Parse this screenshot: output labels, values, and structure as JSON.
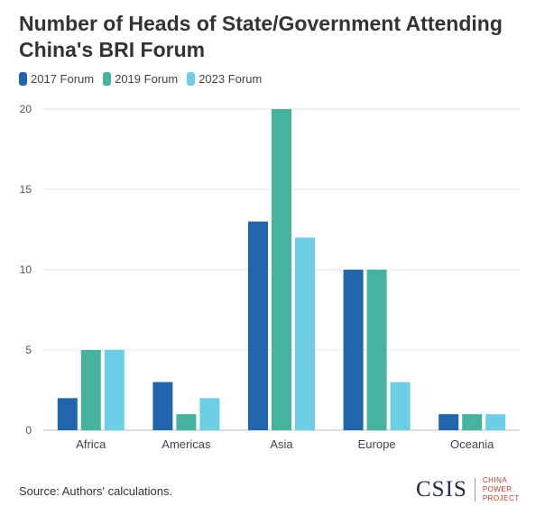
{
  "chart_data": {
    "type": "bar",
    "title": "Number of Heads of State/Government Attending China's BRI Forum",
    "categories": [
      "Africa",
      "Americas",
      "Asia",
      "Europe",
      "Oceania"
    ],
    "series": [
      {
        "name": "2017 Forum",
        "color": "#2166ac",
        "values": [
          2,
          3,
          13,
          10,
          1
        ]
      },
      {
        "name": "2019 Forum",
        "color": "#45b39d",
        "values": [
          5,
          1,
          20,
          10,
          1
        ]
      },
      {
        "name": "2023 Forum",
        "color": "#6dcfe6",
        "values": [
          5,
          2,
          12,
          3,
          1
        ]
      }
    ],
    "yticks": [
      "0",
      "5",
      "10",
      "15",
      "20"
    ],
    "ylim": [
      0,
      20
    ],
    "xlabel": "",
    "ylabel": "",
    "grid": true,
    "legend_position": "top-left"
  },
  "footer": {
    "source": "Source: Authors' calculations.",
    "logo_main": "CSIS",
    "logo_sub": "CHINA POWER PROJECT"
  }
}
